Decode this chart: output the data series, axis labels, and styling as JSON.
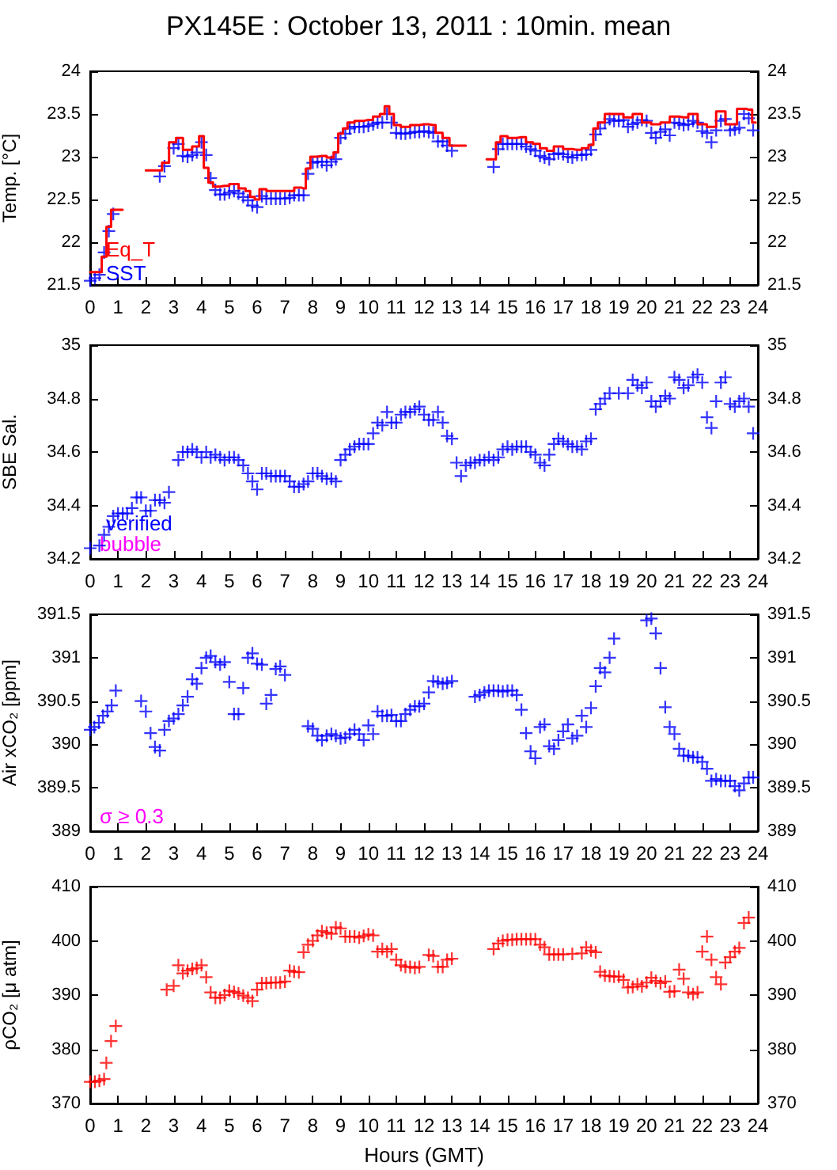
{
  "chart_data": [
    {
      "type": "scatter",
      "title": "PX145E : October 13, 2011 : 10min. mean",
      "ylabel": "Temp. [°C]",
      "xlim": [
        0,
        24
      ],
      "xticks": [
        0,
        1,
        2,
        3,
        4,
        5,
        6,
        7,
        8,
        9,
        10,
        11,
        12,
        13,
        14,
        15,
        16,
        17,
        18,
        19,
        20,
        21,
        22,
        23,
        24
      ],
      "ylim": [
        21.5,
        24
      ],
      "yticks": [
        21.5,
        22,
        22.5,
        23,
        23.5,
        24
      ],
      "y2lim": [
        21.5,
        24
      ],
      "y2ticks": [
        21.5,
        22,
        22.5,
        23,
        23.5,
        24
      ],
      "grid": false,
      "legend": "bottom left",
      "series": [
        {
          "name": "Eq_T",
          "type": "step",
          "color": "#ff0000",
          "line_style": "solid",
          "x": [
            0,
            0.33,
            0.5,
            0.67,
            0.83,
            1.5,
            2.5,
            2.67,
            3,
            3.17,
            3.5,
            3.83,
            4,
            4.17,
            4.33,
            4.5,
            4.83,
            5.17,
            5.5,
            5.67,
            5.83,
            6,
            6.17,
            6.5,
            6.83,
            7.17,
            7.5,
            7.67,
            7.83,
            8,
            8.33,
            8.67,
            8.83,
            9,
            9.17,
            9.33,
            9.67,
            10,
            10.33,
            10.5,
            10.67,
            10.83,
            11,
            11.33,
            11.67,
            12,
            12.33,
            12.5,
            12.83,
            13,
            14,
            14.5,
            14.67,
            14.83,
            15.17,
            15.5,
            15.83,
            16,
            16.33,
            16.5,
            16.83,
            17.17,
            17.5,
            17.83,
            18,
            18.17,
            18.33,
            18.67,
            19,
            19.33,
            19.67,
            20,
            20.33,
            20.67,
            21,
            21.33,
            21.67,
            22,
            22.33,
            22.67,
            23,
            23.5,
            23.67,
            23.92
          ],
          "values": [
            21.65,
            21.65,
            21.83,
            22.18,
            22.38,
            null,
            22.84,
            22.93,
            23.17,
            23.22,
            23.08,
            23.12,
            23.24,
            22.87,
            22.7,
            22.65,
            22.66,
            22.68,
            22.63,
            22.6,
            22.53,
            22.5,
            22.62,
            22.6,
            22.6,
            22.6,
            22.64,
            22.63,
            22.86,
            23.0,
            23.01,
            22.99,
            23.05,
            23.27,
            23.33,
            23.4,
            23.42,
            23.43,
            23.47,
            23.5,
            23.59,
            23.5,
            23.37,
            23.35,
            23.37,
            23.38,
            23.37,
            23.28,
            23.22,
            23.13,
            null,
            22.97,
            23.17,
            23.24,
            23.22,
            23.23,
            23.17,
            23.15,
            23.1,
            23.07,
            23.12,
            23.09,
            23.08,
            23.1,
            23.14,
            23.33,
            23.4,
            23.5,
            23.5,
            23.46,
            23.5,
            23.4,
            23.38,
            23.4,
            23.47,
            23.46,
            23.5,
            23.38,
            23.35,
            23.53,
            23.38,
            23.56,
            23.55,
            23.4
          ]
        },
        {
          "name": "SST",
          "color": "#0000ff",
          "marker": "cross",
          "x": [
            0,
            0.17,
            0.33,
            0.5,
            0.67,
            0.83,
            2.5,
            2.67,
            3,
            3.17,
            3.33,
            3.5,
            3.67,
            3.83,
            4,
            4.17,
            4.33,
            4.5,
            4.67,
            4.83,
            5,
            5.17,
            5.33,
            5.5,
            5.67,
            5.83,
            6,
            6.17,
            6.33,
            6.5,
            6.67,
            6.83,
            7,
            7.17,
            7.33,
            7.5,
            7.67,
            7.83,
            8,
            8.17,
            8.33,
            8.5,
            8.67,
            8.83,
            9,
            9.17,
            9.33,
            9.5,
            9.67,
            9.83,
            10,
            10.17,
            10.33,
            10.5,
            10.67,
            10.83,
            11,
            11.17,
            11.33,
            11.5,
            11.67,
            11.83,
            12,
            12.17,
            12.33,
            12.5,
            12.67,
            12.83,
            13,
            14.5,
            14.67,
            14.83,
            15,
            15.17,
            15.33,
            15.5,
            15.67,
            15.83,
            16,
            16.17,
            16.33,
            16.5,
            16.67,
            16.83,
            17,
            17.17,
            17.33,
            17.5,
            17.67,
            17.83,
            18,
            18.17,
            18.33,
            18.5,
            18.67,
            18.83,
            19,
            19.17,
            19.33,
            19.5,
            19.67,
            19.83,
            20,
            20.17,
            20.33,
            20.5,
            20.67,
            20.83,
            21,
            21.17,
            21.33,
            21.5,
            21.67,
            21.83,
            22,
            22.17,
            22.33,
            22.5,
            22.67,
            22.83,
            23,
            23.17,
            23.33,
            23.5,
            23.67,
            23.83
          ],
          "values": [
            21.55,
            21.58,
            21.62,
            21.88,
            22.13,
            22.33,
            22.77,
            22.89,
            23.1,
            23.15,
            23.01,
            23.0,
            23.02,
            23.05,
            23.17,
            23.02,
            22.75,
            22.61,
            22.56,
            22.56,
            22.58,
            22.6,
            22.57,
            22.53,
            22.49,
            22.43,
            22.41,
            22.54,
            22.51,
            22.51,
            22.51,
            22.51,
            22.51,
            22.52,
            22.55,
            22.55,
            22.55,
            22.8,
            22.93,
            22.94,
            22.94,
            22.9,
            22.94,
            22.97,
            23.22,
            23.27,
            23.33,
            23.35,
            23.35,
            23.35,
            23.36,
            23.38,
            23.4,
            23.4,
            23.5,
            23.4,
            23.28,
            23.27,
            23.27,
            23.28,
            23.29,
            23.29,
            23.3,
            23.29,
            23.28,
            23.18,
            23.18,
            23.13,
            23.07,
            22.88,
            23.09,
            23.15,
            23.15,
            23.15,
            23.15,
            23.15,
            23.12,
            23.09,
            23.07,
            23.01,
            22.99,
            22.97,
            23.03,
            23.04,
            23.03,
            23.0,
            22.99,
            23.02,
            23.02,
            23.03,
            23.08,
            23.26,
            23.33,
            23.4,
            23.44,
            23.42,
            23.42,
            23.43,
            23.35,
            23.38,
            23.4,
            23.43,
            23.42,
            23.28,
            23.22,
            23.29,
            23.32,
            23.25,
            23.4,
            23.39,
            23.37,
            23.38,
            23.42,
            23.4,
            23.3,
            23.28,
            23.17,
            23.31,
            23.42,
            23.44,
            23.31,
            23.32,
            23.34,
            23.5,
            23.45,
            23.31
          ]
        }
      ]
    },
    {
      "type": "scatter",
      "ylabel": "SBE Sal.",
      "xlim": [
        0,
        24
      ],
      "xticks": [
        0,
        1,
        2,
        3,
        4,
        5,
        6,
        7,
        8,
        9,
        10,
        11,
        12,
        13,
        14,
        15,
        16,
        17,
        18,
        19,
        20,
        21,
        22,
        23,
        24
      ],
      "ylim": [
        34.2,
        35
      ],
      "yticks": [
        34.2,
        34.4,
        34.6,
        34.8,
        35
      ],
      "y2lim": [
        34.2,
        35
      ],
      "y2ticks": [
        34.2,
        34.4,
        34.6,
        34.8,
        35
      ],
      "grid": false,
      "legend": "bottom left",
      "annotations": [
        "bubble"
      ],
      "series": [
        {
          "name": "verified",
          "color": "#0000ff",
          "marker": "cross",
          "x": [
            0,
            0.33,
            0.5,
            0.67,
            0.83,
            1,
            1.17,
            1.33,
            1.5,
            1.67,
            1.83,
            2,
            2.17,
            2.33,
            2.5,
            2.67,
            2.83,
            3.17,
            3.33,
            3.5,
            3.67,
            3.83,
            4,
            4.17,
            4.33,
            4.5,
            4.67,
            4.83,
            5,
            5.17,
            5.33,
            5.5,
            5.67,
            5.83,
            6,
            6.17,
            6.33,
            6.5,
            6.67,
            6.83,
            7,
            7.17,
            7.33,
            7.5,
            7.67,
            7.83,
            8,
            8.17,
            8.33,
            8.5,
            8.67,
            8.83,
            9,
            9.17,
            9.33,
            9.5,
            9.67,
            9.83,
            10,
            10.17,
            10.33,
            10.5,
            10.67,
            10.83,
            11,
            11.17,
            11.33,
            11.5,
            11.67,
            11.83,
            12,
            12.17,
            12.33,
            12.5,
            12.67,
            12.83,
            13,
            13.17,
            13.33,
            13.5,
            13.67,
            13.83,
            14,
            14.17,
            14.33,
            14.5,
            14.67,
            14.83,
            15,
            15.17,
            15.33,
            15.5,
            15.67,
            15.83,
            16,
            16.17,
            16.33,
            16.5,
            16.67,
            16.83,
            17,
            17.17,
            17.33,
            17.5,
            17.67,
            17.83,
            18,
            18.17,
            18.33,
            18.5,
            18.67,
            19,
            19.33,
            19.5,
            19.67,
            19.83,
            20,
            20.17,
            20.33,
            20.5,
            20.67,
            20.83,
            21,
            21.17,
            21.33,
            21.5,
            21.67,
            21.83,
            22,
            22.17,
            22.33,
            22.5,
            22.67,
            22.83,
            23,
            23.17,
            23.33,
            23.5,
            23.67,
            23.83
          ],
          "values": [
            34.24,
            34.25,
            34.29,
            34.32,
            34.36,
            34.37,
            34.37,
            34.37,
            34.39,
            34.43,
            34.43,
            34.38,
            34.38,
            34.42,
            34.42,
            34.41,
            34.45,
            34.57,
            34.6,
            34.6,
            34.61,
            34.6,
            34.58,
            34.6,
            34.58,
            34.59,
            34.58,
            34.57,
            34.58,
            34.58,
            34.57,
            34.55,
            34.52,
            34.49,
            34.46,
            34.52,
            34.52,
            34.51,
            34.51,
            34.51,
            34.51,
            34.49,
            34.47,
            34.47,
            34.48,
            34.49,
            34.52,
            34.52,
            34.51,
            34.5,
            34.5,
            34.49,
            34.57,
            34.59,
            34.61,
            34.62,
            34.63,
            34.63,
            34.63,
            34.67,
            34.71,
            34.7,
            34.75,
            34.71,
            34.71,
            34.74,
            34.75,
            34.75,
            34.76,
            34.77,
            34.74,
            34.72,
            34.72,
            34.75,
            34.71,
            34.66,
            34.65,
            34.56,
            34.51,
            34.55,
            34.56,
            34.56,
            34.57,
            34.57,
            34.58,
            34.57,
            34.58,
            34.61,
            34.62,
            34.61,
            34.62,
            34.62,
            34.62,
            34.6,
            34.59,
            34.56,
            34.55,
            34.59,
            34.63,
            34.65,
            34.64,
            34.63,
            34.62,
            34.62,
            34.61,
            34.64,
            34.65,
            34.76,
            34.78,
            34.8,
            34.82,
            34.82,
            34.82,
            34.87,
            34.85,
            34.84,
            34.86,
            34.79,
            34.77,
            34.79,
            34.81,
            34.8,
            34.88,
            34.87,
            34.84,
            34.85,
            34.88,
            34.89,
            34.86,
            34.73,
            34.69,
            34.79,
            34.86,
            34.88,
            34.78,
            34.77,
            34.79,
            34.8,
            34.77,
            34.67
          ]
        }
      ]
    },
    {
      "type": "scatter",
      "ylabel": "Air xCO₂ [ppm]",
      "xlim": [
        0,
        24
      ],
      "xticks": [
        0,
        1,
        2,
        3,
        4,
        5,
        6,
        7,
        8,
        9,
        10,
        11,
        12,
        13,
        14,
        15,
        16,
        17,
        18,
        19,
        20,
        21,
        22,
        23,
        24
      ],
      "ylim": [
        389,
        391.5
      ],
      "yticks": [
        389,
        389.5,
        390,
        390.5,
        391,
        391.5
      ],
      "y2lim": [
        389,
        391.5
      ],
      "y2ticks": [
        389,
        389.5,
        390,
        390.5,
        391,
        391.5
      ],
      "grid": false,
      "annotations": [
        "σ ≥ 0.3"
      ],
      "series": [
        {
          "color": "#0000ff",
          "marker": "cross",
          "x": [
            0,
            0.15,
            0.31,
            0.46,
            0.62,
            0.77,
            0.92,
            1.83,
            2,
            2.17,
            2.33,
            2.5,
            2.67,
            2.83,
            3,
            3.17,
            3.33,
            3.5,
            3.67,
            3.83,
            4,
            4.17,
            4.33,
            4.5,
            4.67,
            4.83,
            5,
            5.17,
            5.33,
            5.5,
            5.67,
            5.83,
            6,
            6.17,
            6.33,
            6.5,
            6.67,
            6.83,
            7,
            7.83,
            8,
            8.17,
            8.33,
            8.5,
            8.67,
            8.83,
            9,
            9.17,
            9.33,
            9.5,
            9.67,
            9.83,
            10,
            10.17,
            10.33,
            10.5,
            10.67,
            10.83,
            11,
            11.17,
            11.33,
            11.5,
            11.67,
            11.83,
            12,
            12.17,
            12.33,
            12.5,
            12.67,
            12.83,
            13,
            13.83,
            14,
            14.17,
            14.33,
            14.5,
            14.67,
            14.83,
            15,
            15.17,
            15.33,
            15.5,
            15.67,
            15.83,
            16,
            16.17,
            16.33,
            16.5,
            16.67,
            16.83,
            17,
            17.17,
            17.33,
            17.5,
            17.67,
            17.83,
            18,
            18.17,
            18.33,
            18.5,
            18.67,
            18.83,
            20,
            20.17,
            20.33,
            20.5,
            20.67,
            20.83,
            21,
            21.17,
            21.33,
            21.5,
            21.67,
            21.83,
            22,
            22.17,
            22.33,
            22.5,
            22.67,
            22.83,
            23,
            23.17,
            23.33,
            23.5,
            23.67,
            23.83
          ],
          "values": [
            390.17,
            390.2,
            390.25,
            390.33,
            390.38,
            390.45,
            390.62,
            390.5,
            390.38,
            390.13,
            389.97,
            389.93,
            390.17,
            390.27,
            390.3,
            390.35,
            390.45,
            390.55,
            390.75,
            390.7,
            390.88,
            391.0,
            391.02,
            390.95,
            390.92,
            390.95,
            390.72,
            390.35,
            390.35,
            390.65,
            391.0,
            391.05,
            390.93,
            390.92,
            390.47,
            390.57,
            390.87,
            390.9,
            390.8,
            390.21,
            390.18,
            390.1,
            390.05,
            390.1,
            390.12,
            390.1,
            390.07,
            390.08,
            390.12,
            390.17,
            390.12,
            390.05,
            390.22,
            390.12,
            390.38,
            390.33,
            390.33,
            390.34,
            390.27,
            390.27,
            390.35,
            390.4,
            390.44,
            390.44,
            390.47,
            390.6,
            390.73,
            390.72,
            390.7,
            390.71,
            390.73,
            390.55,
            390.57,
            390.6,
            390.62,
            390.62,
            390.62,
            390.61,
            390.62,
            390.62,
            390.57,
            390.4,
            390.13,
            389.92,
            389.84,
            390.2,
            390.23,
            389.98,
            389.95,
            390.05,
            390.15,
            390.23,
            390.07,
            390.1,
            390.33,
            390.2,
            390.42,
            390.67,
            390.88,
            390.83,
            391.0,
            391.22,
            391.43,
            391.45,
            391.28,
            390.88,
            390.43,
            390.2,
            390.12,
            389.95,
            389.87,
            389.87,
            389.85,
            389.85,
            389.8,
            389.72,
            389.58,
            389.6,
            389.58,
            389.58,
            389.58,
            389.52,
            389.47,
            389.55,
            389.62,
            389.62
          ]
        }
      ]
    },
    {
      "type": "scatter",
      "xlabel": "Hours (GMT)",
      "ylabel": "ρCO₂ [μ atm]",
      "xlim": [
        0,
        24
      ],
      "xticks": [
        0,
        1,
        2,
        3,
        4,
        5,
        6,
        7,
        8,
        9,
        10,
        11,
        12,
        13,
        14,
        15,
        16,
        17,
        18,
        19,
        20,
        21,
        22,
        23,
        24
      ],
      "ylim": [
        370,
        410
      ],
      "yticks": [
        370,
        380,
        390,
        400,
        410
      ],
      "y2lim": [
        370,
        410
      ],
      "y2ticks": [
        370,
        380,
        390,
        400,
        410
      ],
      "grid": false,
      "series": [
        {
          "color": "#ff0000",
          "marker": "cross",
          "x": [
            0,
            0.17,
            0.33,
            0.5,
            0.58,
            0.75,
            0.92,
            2.75,
            3,
            3.17,
            3.33,
            3.5,
            3.67,
            3.83,
            4,
            4.17,
            4.33,
            4.5,
            4.67,
            4.83,
            5,
            5.17,
            5.33,
            5.5,
            5.67,
            5.83,
            6,
            6.17,
            6.33,
            6.5,
            6.67,
            6.83,
            7,
            7.17,
            7.33,
            7.5,
            7.67,
            7.83,
            8,
            8.17,
            8.33,
            8.5,
            8.67,
            8.83,
            9,
            9.17,
            9.33,
            9.5,
            9.67,
            9.83,
            10,
            10.17,
            10.33,
            10.5,
            10.67,
            10.83,
            11,
            11.17,
            11.33,
            11.5,
            11.67,
            11.83,
            12.17,
            12.33,
            12.5,
            12.67,
            12.83,
            13,
            14.5,
            14.67,
            14.83,
            15,
            15.17,
            15.33,
            15.5,
            15.67,
            15.83,
            16,
            16.17,
            16.33,
            16.5,
            16.67,
            16.83,
            17,
            17.33,
            17.67,
            17.83,
            18,
            18.17,
            18.33,
            18.5,
            18.67,
            18.83,
            19,
            19.17,
            19.33,
            19.5,
            19.67,
            19.83,
            20,
            20.17,
            20.33,
            20.5,
            20.67,
            20.83,
            21,
            21.17,
            21.33,
            21.5,
            21.67,
            21.83,
            22,
            22.17,
            22.33,
            22.5,
            22.67,
            22.83,
            23,
            23.17,
            23.33,
            23.5,
            23.67
          ],
          "values": [
            374.0,
            374.0,
            374.2,
            374.5,
            377.5,
            381.5,
            384.3,
            391.0,
            391.7,
            395.5,
            394.0,
            394.5,
            394.8,
            395.0,
            395.5,
            393.3,
            390.5,
            389.5,
            389.5,
            390.0,
            390.8,
            390.6,
            390.3,
            389.9,
            389.5,
            388.9,
            391.0,
            392.2,
            392.2,
            392.3,
            392.3,
            392.3,
            392.5,
            394.5,
            394.3,
            394.2,
            397.9,
            399.3,
            400.0,
            401.0,
            401.8,
            401.5,
            401.3,
            402.5,
            402.3,
            400.8,
            400.8,
            400.8,
            400.6,
            400.9,
            401.2,
            401.0,
            398.0,
            398.5,
            398.0,
            398.5,
            396.5,
            395.5,
            395.2,
            395.2,
            395.0,
            395.2,
            397.4,
            397.2,
            395.2,
            395.2,
            396.5,
            396.7,
            398.5,
            399.5,
            400.0,
            400.2,
            400.2,
            400.3,
            400.3,
            400.3,
            400.3,
            400.3,
            399.3,
            398.8,
            397.5,
            397.5,
            397.5,
            397.5,
            397.6,
            397.7,
            398.8,
            398.2,
            397.9,
            394.3,
            393.6,
            393.5,
            393.4,
            393.4,
            392.8,
            391.4,
            391.5,
            392.0,
            391.6,
            392.3,
            393.2,
            392.6,
            392.2,
            392.5,
            390.6,
            390.7,
            394.7,
            393.0,
            390.5,
            390.2,
            390.5,
            398.0,
            400.8,
            396.5,
            393.3,
            392.0,
            396.0,
            397.0,
            398.0,
            398.7,
            403.3,
            404.3
          ]
        }
      ]
    }
  ]
}
